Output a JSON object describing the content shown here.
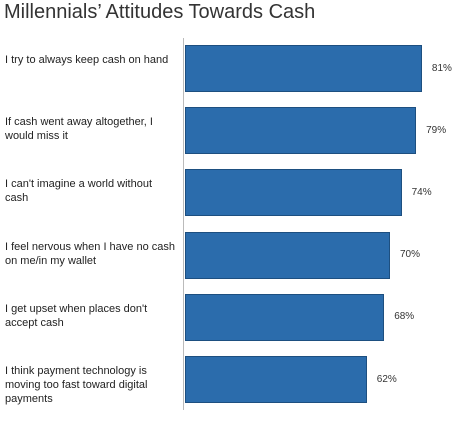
{
  "chart_data": {
    "type": "bar",
    "orientation": "horizontal",
    "title": "Millennials’ Attitudes Towards Cash",
    "categories": [
      "I try to always keep cash on hand",
      "If cash went away altogether, I would miss it",
      "I can't imagine a world without cash",
      "I feel nervous when I have no cash on me/in my wallet",
      "I get upset when places don't accept cash",
      "I think payment technology is moving too fast toward digital payments"
    ],
    "values": [
      81,
      79,
      74,
      70,
      68,
      62
    ],
    "value_labels": [
      "81%",
      "79%",
      "74%",
      "70%",
      "68%",
      "62%"
    ],
    "color": "#2b6cac"
  }
}
